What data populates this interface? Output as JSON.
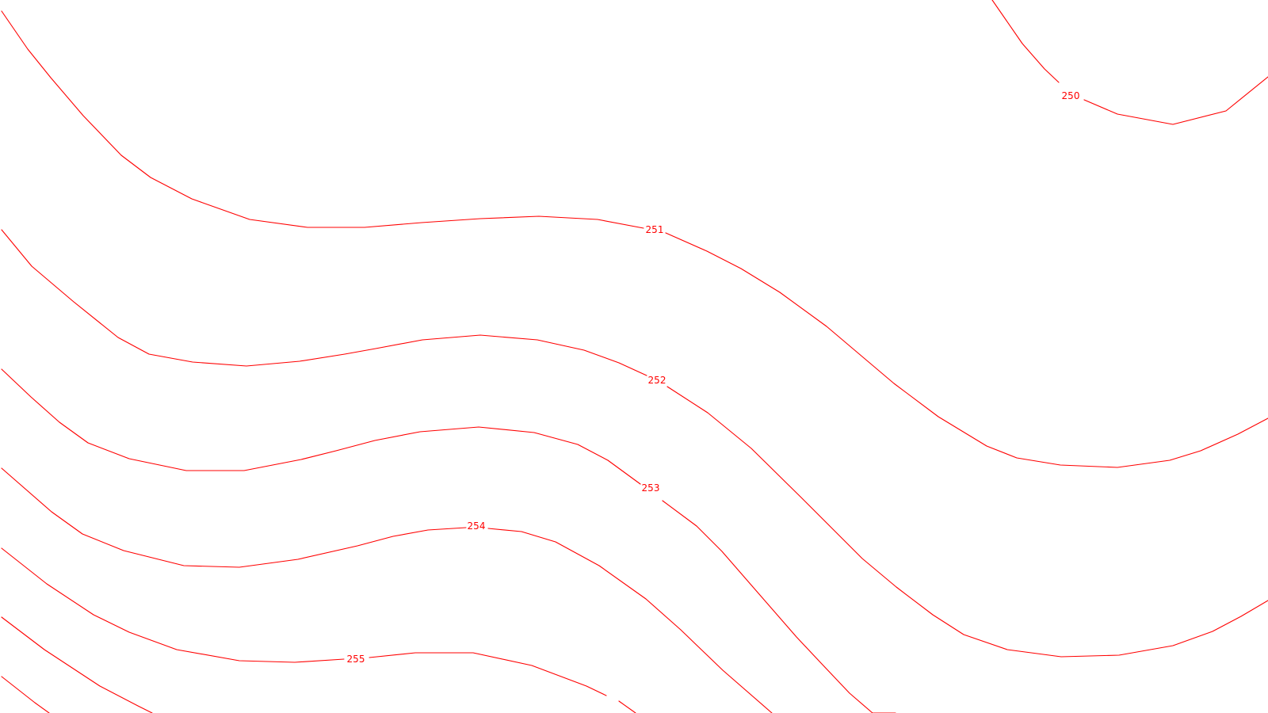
{
  "map": {
    "line_color": "#ff0000",
    "background": "#ffffff",
    "contours": [
      {
        "id": "c250",
        "label": "250"
      },
      {
        "id": "c251",
        "label": "251"
      },
      {
        "id": "c252",
        "label": "252"
      },
      {
        "id": "c253",
        "label": "253"
      },
      {
        "id": "c254",
        "label": "254"
      },
      {
        "id": "c255",
        "label": "255"
      },
      {
        "id": "c256",
        "label": ""
      },
      {
        "id": "c257",
        "label": ""
      }
    ]
  }
}
